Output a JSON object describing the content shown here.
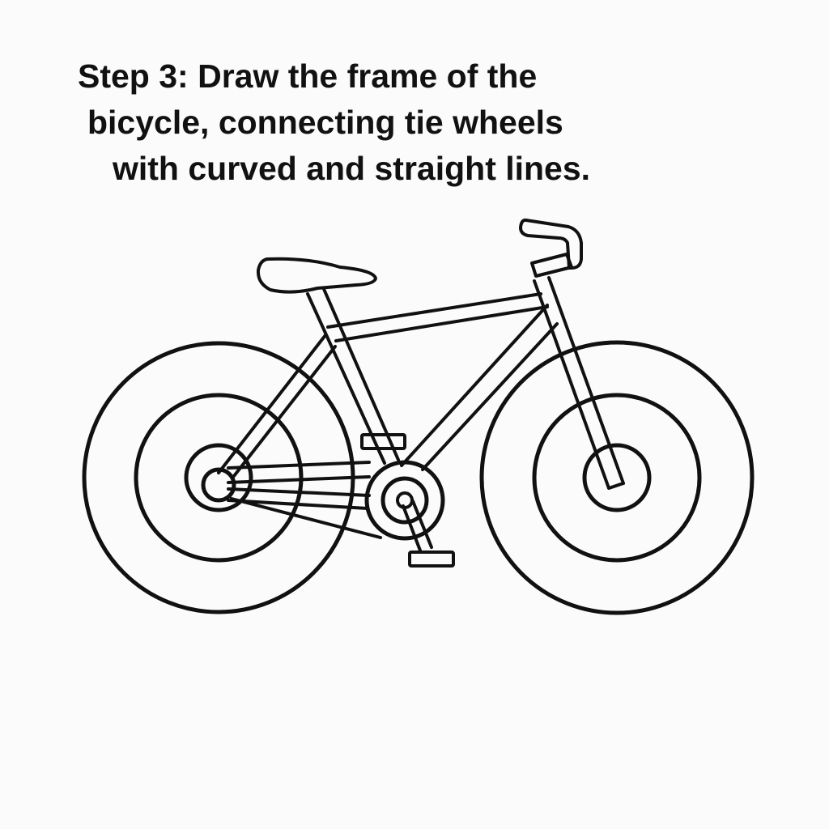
{
  "instruction": {
    "lines": [
      "Step 3: Draw the frame of the",
      "bicycle, connecting tie wheels",
      "with curved and straight lines."
    ]
  },
  "illustration": {
    "subject": "bicycle line drawing",
    "stroke_color": "#111111",
    "background_color": "#fbfbfb"
  }
}
